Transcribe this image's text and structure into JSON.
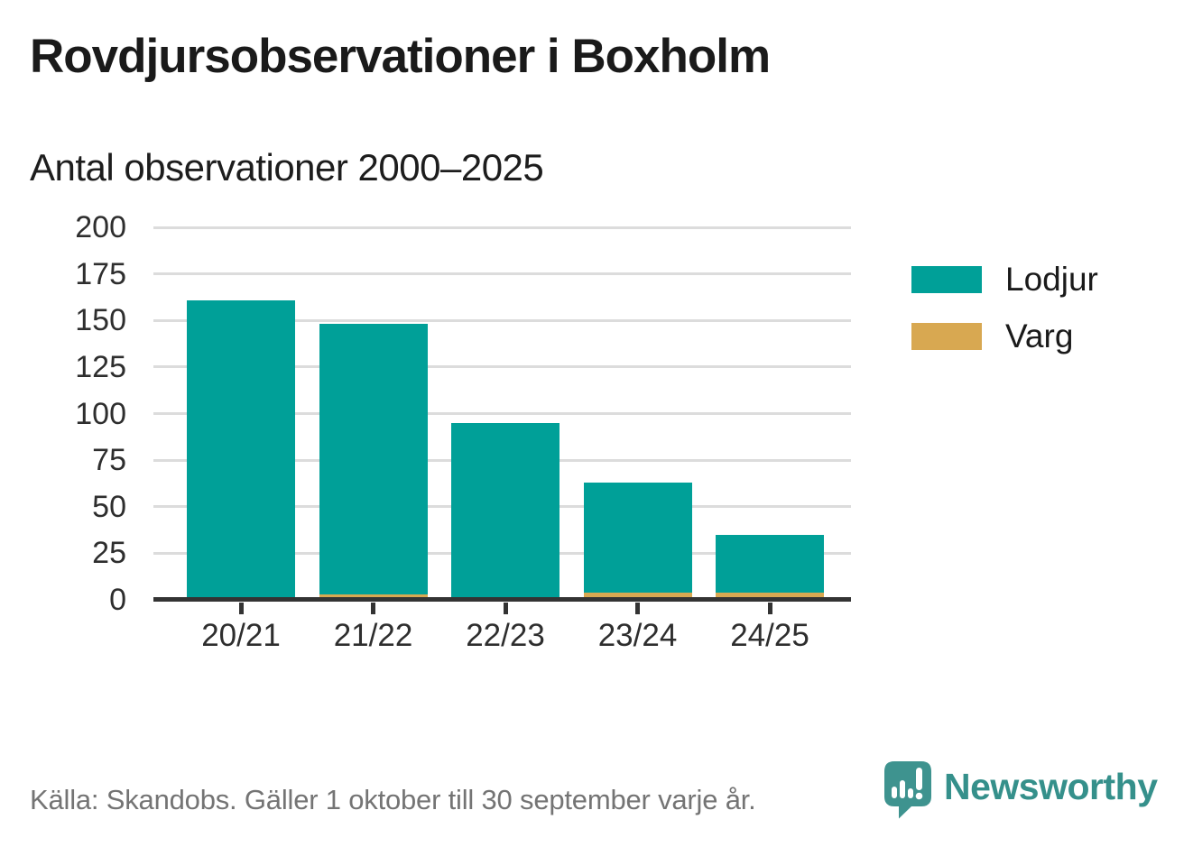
{
  "header": {
    "title": "Rovdjursobservationer i Boxholm",
    "subtitle": "Antal observationer 2000–2025"
  },
  "chart_data": {
    "type": "bar",
    "stacked": true,
    "title": "Rovdjursobservationer i Boxholm",
    "subtitle": "Antal observationer 2000–2025",
    "categories": [
      "20/21",
      "21/22",
      "22/23",
      "23/24",
      "24/25"
    ],
    "series": [
      {
        "name": "Lodjur",
        "color": "#00a098",
        "values": [
          161,
          145,
          95,
          59,
          31
        ]
      },
      {
        "name": "Varg",
        "color": "#d8a851",
        "values": [
          0,
          3,
          0,
          4,
          4
        ]
      }
    ],
    "totals": [
      161,
      148,
      95,
      63,
      35
    ],
    "xlabel": "",
    "ylabel": "",
    "ylim": [
      0,
      200
    ],
    "yticks": [
      0,
      25,
      50,
      75,
      100,
      125,
      150,
      175,
      200
    ],
    "grid": true,
    "legend_position": "right"
  },
  "footer": {
    "source": "Källa: Skandobs. Gäller 1 oktober till 30 september varje år.",
    "brand": "Newsworthy"
  },
  "colors": {
    "lodjur": "#00a098",
    "varg": "#d8a851",
    "gridline": "#dcdcdc",
    "axis": "#333333",
    "text": "#1a1a1a",
    "muted_text": "#747474",
    "brand_teal": "#35908b"
  }
}
